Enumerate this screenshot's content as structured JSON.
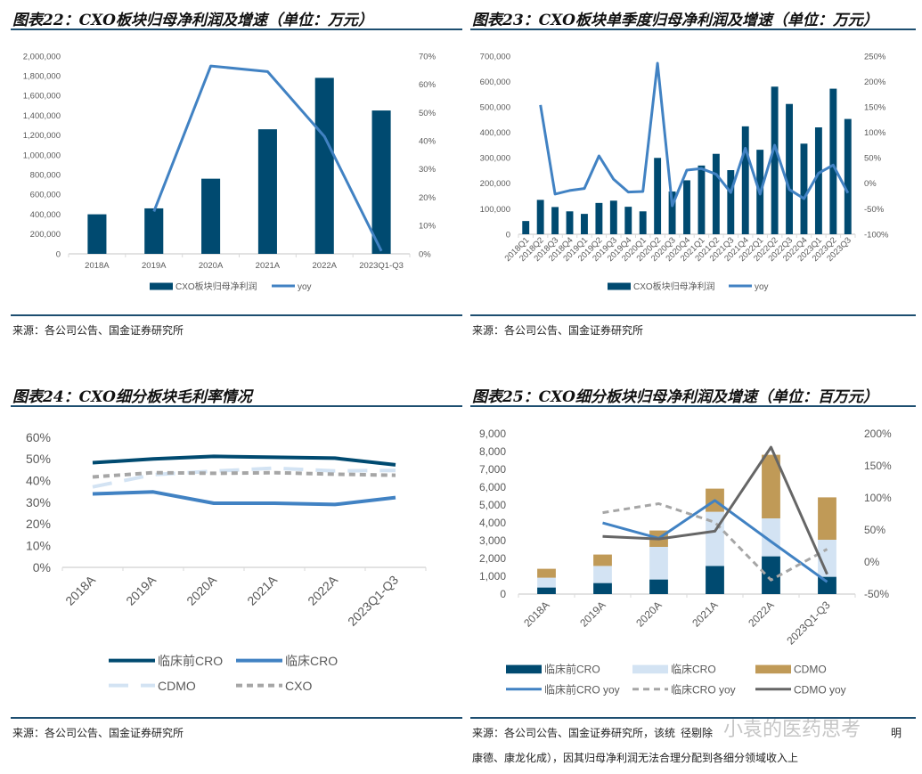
{
  "panels": [
    {
      "title": "图表22：CXO板块归母净利润及增速（单位：万元）",
      "source": "来源：各公司公告、国金证券研究所"
    },
    {
      "title": "图表23：CXO板块单季度归母净利润及增速（单位：万元）",
      "source": "来源：各公司公告、国金证券研究所"
    },
    {
      "title": "图表24：CXO细分板块毛利率情况",
      "source": "来源：各公司公告、国金证券研究所"
    },
    {
      "title": "图表25：CXO细分板块归母净利润及增速（单位：百万元）",
      "source": "来源：各公司公告、国金证券研究所，该统",
      "source_tail": "径剔除",
      "source_end": "明",
      "source_line2": "康德、康龙化成），因其归母净利润无法合理分配到各细分领域收入上"
    }
  ],
  "watermark": "小袁的医药思考",
  "colors": {
    "dark_navy": "#004a70",
    "blue": "#4182c3",
    "light_blue": "#d3e3f3",
    "gold": "#c09a57",
    "gray_dash": "#a6a6a6",
    "dark_gray": "#666666",
    "rule": "#1d4e70"
  },
  "chart_data": [
    {
      "type": "bar+line",
      "categories": [
        "2018A",
        "2019A",
        "2020A",
        "2021A",
        "2022A",
        "2023Q1-Q3"
      ],
      "series": [
        {
          "name": "CXO板块归母净利润",
          "kind": "bar",
          "axis": "left",
          "color": "#004a70",
          "values": [
            400000,
            460000,
            760000,
            1260000,
            1780000,
            1450000
          ]
        },
        {
          "name": "yoy",
          "kind": "line",
          "axis": "right",
          "color": "#4182c3",
          "values": [
            null,
            15,
            66.5,
            64.5,
            41.5,
            1
          ]
        }
      ],
      "yleft": {
        "range": [
          0,
          2000000
        ],
        "ticks": [
          "0",
          "200,000",
          "400,000",
          "600,000",
          "800,000",
          "1,000,000",
          "1,200,000",
          "1,400,000",
          "1,600,000",
          "1,800,000",
          "2,000,000"
        ]
      },
      "yright": {
        "range": [
          0,
          70
        ],
        "ticks": [
          "0%",
          "10%",
          "20%",
          "30%",
          "40%",
          "50%",
          "60%",
          "70%"
        ]
      },
      "legend": "bottom",
      "grid": false
    },
    {
      "type": "bar+line",
      "categories": [
        "2018Q1",
        "2018Q2",
        "2018Q3",
        "2018Q4",
        "2019Q1",
        "2019Q2",
        "2019Q3",
        "2019Q4",
        "2020Q1",
        "2020Q2",
        "2020Q3",
        "2020Q4",
        "2021Q1",
        "2021Q2",
        "2021Q3",
        "2021Q4",
        "2022Q1",
        "2022Q2",
        "2022Q3",
        "2022Q4",
        "2023Q1",
        "2023Q2",
        "2023Q3"
      ],
      "series": [
        {
          "name": "CXO板块归母净利润",
          "kind": "bar",
          "axis": "left",
          "color": "#004a70",
          "values": [
            52000,
            135000,
            107000,
            90000,
            80000,
            123000,
            132000,
            108000,
            90000,
            300000,
            168000,
            212000,
            270000,
            316000,
            252000,
            424000,
            332000,
            580000,
            512000,
            356000,
            420000,
            572000,
            453000
          ]
        },
        {
          "name": "yoy",
          "kind": "line",
          "axis": "right",
          "color": "#4182c3",
          "values": [
            null,
            154,
            -21,
            -14,
            -10,
            54,
            8,
            -17,
            -16,
            236,
            -44,
            26,
            29,
            18,
            -18,
            69,
            -21,
            75,
            -12,
            -30,
            20,
            36,
            -19
          ]
        }
      ],
      "yleft": {
        "range": [
          0,
          700000
        ],
        "ticks": [
          "0",
          "100,000",
          "200,000",
          "300,000",
          "400,000",
          "500,000",
          "600,000",
          "700,000"
        ]
      },
      "yright": {
        "range": [
          -100,
          250
        ],
        "ticks": [
          "-100%",
          "-50%",
          "0%",
          "50%",
          "100%",
          "150%",
          "200%",
          "250%"
        ]
      },
      "legend": "bottom",
      "grid": false
    },
    {
      "type": "line",
      "categories": [
        "2018A",
        "2019A",
        "2020A",
        "2021A",
        "2022A",
        "2023Q1-Q3"
      ],
      "series": [
        {
          "name": "临床前CRO",
          "color": "#004a70",
          "dash": "solid",
          "values": [
            48.3,
            50.0,
            51.2,
            50.8,
            50.4,
            47.3
          ]
        },
        {
          "name": "临床CRO",
          "color": "#4182c3",
          "dash": "solid",
          "values": [
            33.9,
            34.8,
            29.6,
            29.6,
            29.0,
            32.2
          ]
        },
        {
          "name": "CDMO",
          "color": "#d3e3f3",
          "dash": "long-dash",
          "values": [
            37.1,
            42.8,
            44.4,
            45.8,
            44.5,
            44.7
          ]
        },
        {
          "name": "CXO",
          "color": "#a6a6a6",
          "dash": "dash",
          "values": [
            41.7,
            43.7,
            43.4,
            43.7,
            43.0,
            42.5
          ]
        }
      ],
      "yleft": {
        "range": [
          0,
          60
        ],
        "ticks": [
          "0%",
          "10%",
          "20%",
          "30%",
          "40%",
          "50%",
          "60%"
        ]
      },
      "legend": "bottom",
      "grid": false
    },
    {
      "type": "stacked-bar+line",
      "categories": [
        "2018A",
        "2019A",
        "2020A",
        "2021A",
        "2022A",
        "2023Q1-Q3"
      ],
      "series": [
        {
          "name": "临床前CRO",
          "kind": "bar",
          "axis": "left",
          "color": "#004a70",
          "values": [
            370,
            620,
            820,
            1580,
            2120,
            970
          ]
        },
        {
          "name": "临床CRO",
          "kind": "bar",
          "axis": "left",
          "color": "#d3e3f3",
          "values": [
            550,
            960,
            1830,
            3040,
            2130,
            2080
          ]
        },
        {
          "name": "CDMO",
          "kind": "bar",
          "axis": "left",
          "color": "#c09a57",
          "values": [
            500,
            640,
            920,
            1300,
            3570,
            2380
          ]
        },
        {
          "name": "临床前CRO yoy",
          "kind": "line",
          "axis": "right",
          "color": "#4182c3",
          "dash": "solid",
          "values": [
            null,
            61,
            37,
            96,
            32,
            -31
          ]
        },
        {
          "name": "临床CRO yoy",
          "kind": "line",
          "axis": "right",
          "color": "#a6a6a6",
          "dash": "dash",
          "values": [
            null,
            77,
            91,
            62,
            -28,
            20
          ]
        },
        {
          "name": "CDMO yoy",
          "kind": "line",
          "axis": "right",
          "color": "#666666",
          "dash": "solid",
          "values": [
            null,
            40,
            36,
            48,
            179,
            -19
          ]
        }
      ],
      "yleft": {
        "range": [
          0,
          9000
        ],
        "ticks": [
          "0",
          "1,000",
          "2,000",
          "3,000",
          "4,000",
          "5,000",
          "6,000",
          "7,000",
          "8,000",
          "9,000"
        ]
      },
      "yright": {
        "range": [
          -50,
          200
        ],
        "ticks": [
          "-50%",
          "0%",
          "50%",
          "100%",
          "150%",
          "200%"
        ]
      },
      "legend": "bottom",
      "grid": false
    }
  ]
}
